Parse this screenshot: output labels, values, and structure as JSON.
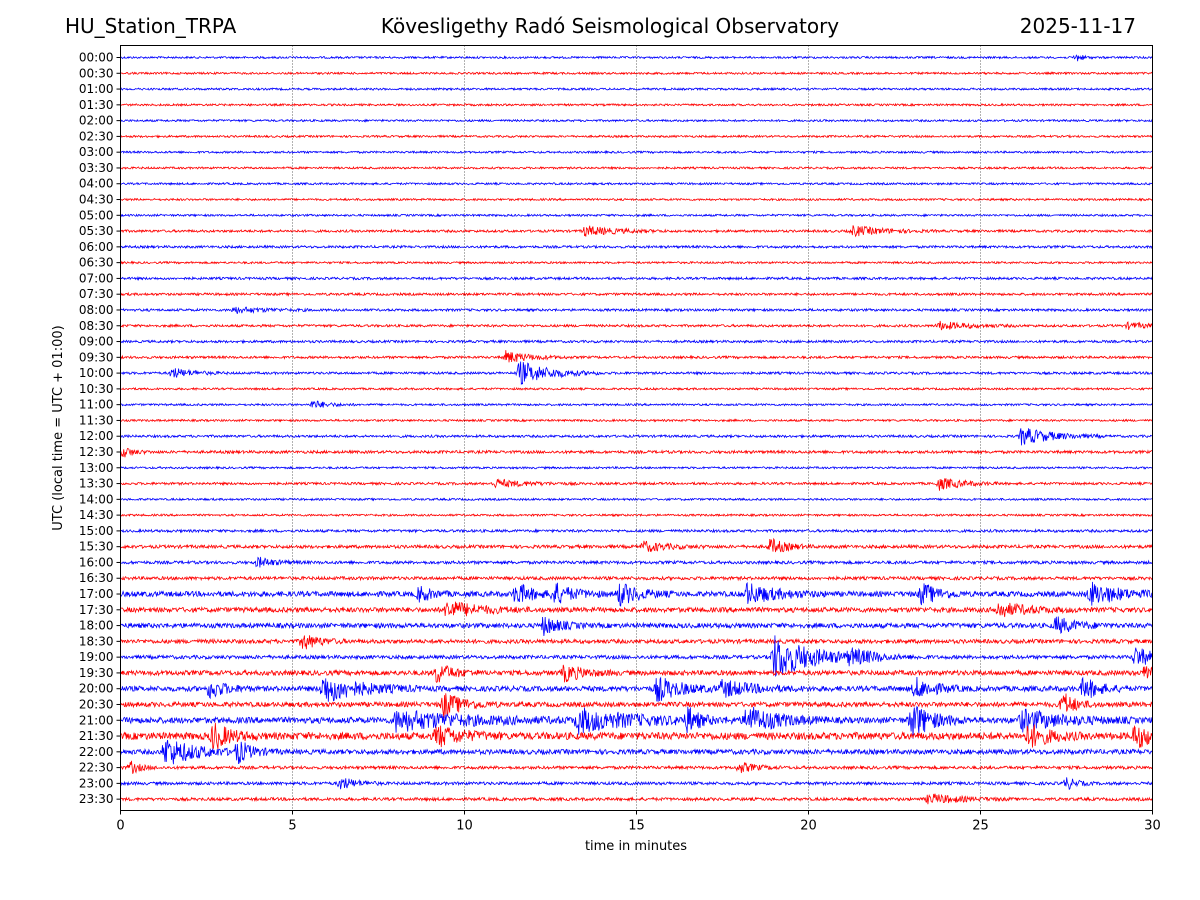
{
  "header": {
    "station": "HU_Station_TRPA",
    "observatory": "Kövesligethy Radó Seismological Observatory",
    "date": "2025-11-17"
  },
  "colors": {
    "trace_even": "#0000ff",
    "trace_odd": "#ff0000",
    "grid": "#000000"
  },
  "chart_data": {
    "type": "helicorder",
    "title": "Kövesligethy Radó Seismological Observatory",
    "xlabel": "time in minutes",
    "ylabel": "UTC (local time = UTC + 01:00)",
    "xlim": [
      0,
      30
    ],
    "xticks": [
      0,
      5,
      10,
      15,
      20,
      25,
      30
    ],
    "xtick_labels": [
      "0",
      "5",
      "10",
      "15",
      "20",
      "25",
      "30"
    ],
    "grid_vertical_dotted_at": [
      5,
      10,
      15,
      20,
      25
    ],
    "row_labels": [
      "00:00",
      "00:30",
      "01:00",
      "01:30",
      "02:00",
      "02:30",
      "03:00",
      "03:30",
      "04:00",
      "04:30",
      "05:00",
      "05:30",
      "06:00",
      "06:30",
      "07:00",
      "07:30",
      "08:00",
      "08:30",
      "09:00",
      "09:30",
      "10:00",
      "10:30",
      "11:00",
      "11:30",
      "12:00",
      "12:30",
      "13:00",
      "13:30",
      "14:00",
      "14:30",
      "15:00",
      "15:30",
      "16:00",
      "16:30",
      "17:00",
      "17:30",
      "18:00",
      "18:30",
      "19:00",
      "19:30",
      "20:00",
      "20:30",
      "21:00",
      "21:30",
      "22:00",
      "22:30",
      "23:00",
      "23:30"
    ],
    "row_noise": [
      1,
      1,
      1,
      1,
      1,
      1,
      1,
      1,
      1,
      1,
      1,
      1.2,
      1.2,
      1,
      1.2,
      1.2,
      1.2,
      1.2,
      1.2,
      1.2,
      1.2,
      1,
      1,
      1,
      1.2,
      1.4,
      1,
      1.2,
      1,
      1,
      1.3,
      1.6,
      1.5,
      1.6,
      2.6,
      2.4,
      2.4,
      2,
      1.8,
      2.4,
      2.6,
      2.4,
      3,
      3.6,
      2.4,
      1.5,
      1.5,
      1.5
    ],
    "events": [
      {
        "row": "00:00",
        "minute": 27.8,
        "amplitude": 4,
        "duration": 0.3
      },
      {
        "row": "05:30",
        "minute": 13.5,
        "amplitude": 5,
        "duration": 1.5
      },
      {
        "row": "05:30",
        "minute": 21.3,
        "amplitude": 5,
        "duration": 1.5
      },
      {
        "row": "08:00",
        "minute": 3.3,
        "amplitude": 3,
        "duration": 1.5
      },
      {
        "row": "08:30",
        "minute": 23.8,
        "amplitude": 4,
        "duration": 1.5
      },
      {
        "row": "08:30",
        "minute": 29.3,
        "amplitude": 3,
        "duration": 1.0
      },
      {
        "row": "09:30",
        "minute": 11.2,
        "amplitude": 6,
        "duration": 1.2
      },
      {
        "row": "10:00",
        "minute": 11.6,
        "amplitude": 12,
        "duration": 1.5
      },
      {
        "row": "10:00",
        "minute": 1.5,
        "amplitude": 5,
        "duration": 1.0
      },
      {
        "row": "11:00",
        "minute": 5.6,
        "amplitude": 4,
        "duration": 0.8
      },
      {
        "row": "12:00",
        "minute": 26.2,
        "amplitude": 9,
        "duration": 1.5
      },
      {
        "row": "12:30",
        "minute": 0.1,
        "amplitude": 5,
        "duration": 0.5
      },
      {
        "row": "13:30",
        "minute": 10.9,
        "amplitude": 4,
        "duration": 1.5
      },
      {
        "row": "13:30",
        "minute": 23.8,
        "amplitude": 6,
        "duration": 1.2
      },
      {
        "row": "15:30",
        "minute": 15.2,
        "amplitude": 5,
        "duration": 1.2
      },
      {
        "row": "15:30",
        "minute": 18.9,
        "amplitude": 8,
        "duration": 0.8
      },
      {
        "row": "16:00",
        "minute": 4.0,
        "amplitude": 5,
        "duration": 0.8
      },
      {
        "row": "17:00",
        "minute": 8.7,
        "amplitude": 8,
        "duration": 0.6
      },
      {
        "row": "17:00",
        "minute": 11.5,
        "amplitude": 11,
        "duration": 0.8
      },
      {
        "row": "17:00",
        "minute": 12.6,
        "amplitude": 10,
        "duration": 1.0
      },
      {
        "row": "17:00",
        "minute": 14.5,
        "amplitude": 11,
        "duration": 1.0
      },
      {
        "row": "17:00",
        "minute": 18.2,
        "amplitude": 10,
        "duration": 1.5
      },
      {
        "row": "17:00",
        "minute": 23.3,
        "amplitude": 11,
        "duration": 0.8
      },
      {
        "row": "17:00",
        "minute": 28.2,
        "amplitude": 11,
        "duration": 1.5
      },
      {
        "row": "17:30",
        "minute": 9.5,
        "amplitude": 9,
        "duration": 1.5
      },
      {
        "row": "17:30",
        "minute": 25.5,
        "amplitude": 7,
        "duration": 1.5
      },
      {
        "row": "18:00",
        "minute": 12.3,
        "amplitude": 9,
        "duration": 0.8
      },
      {
        "row": "18:00",
        "minute": 27.2,
        "amplitude": 8,
        "duration": 1.0
      },
      {
        "row": "18:30",
        "minute": 5.3,
        "amplitude": 8,
        "duration": 0.8
      },
      {
        "row": "19:00",
        "minute": 19.0,
        "amplitude": 22,
        "duration": 2.0
      },
      {
        "row": "19:00",
        "minute": 21.2,
        "amplitude": 6,
        "duration": 1.5
      },
      {
        "row": "19:00",
        "minute": 29.5,
        "amplitude": 10,
        "duration": 1.0
      },
      {
        "row": "19:30",
        "minute": 9.2,
        "amplitude": 10,
        "duration": 0.8
      },
      {
        "row": "19:30",
        "minute": 12.9,
        "amplitude": 8,
        "duration": 1.0
      },
      {
        "row": "19:30",
        "minute": 29.8,
        "amplitude": 9,
        "duration": 0.8
      },
      {
        "row": "20:00",
        "minute": 5.9,
        "amplitude": 14,
        "duration": 1.8
      },
      {
        "row": "20:00",
        "minute": 2.6,
        "amplitude": 9,
        "duration": 0.8
      },
      {
        "row": "20:00",
        "minute": 15.6,
        "amplitude": 12,
        "duration": 1.2
      },
      {
        "row": "20:00",
        "minute": 17.5,
        "amplitude": 8,
        "duration": 1.5
      },
      {
        "row": "20:00",
        "minute": 23.1,
        "amplitude": 10,
        "duration": 1.0
      },
      {
        "row": "20:00",
        "minute": 28.0,
        "amplitude": 11,
        "duration": 0.8
      },
      {
        "row": "20:30",
        "minute": 9.4,
        "amplitude": 12,
        "duration": 1.0
      },
      {
        "row": "20:30",
        "minute": 27.4,
        "amplitude": 12,
        "duration": 0.6
      },
      {
        "row": "21:00",
        "minute": 8.0,
        "amplitude": 10,
        "duration": 3.5
      },
      {
        "row": "21:00",
        "minute": 13.3,
        "amplitude": 11,
        "duration": 3.0
      },
      {
        "row": "21:00",
        "minute": 16.5,
        "amplitude": 12,
        "duration": 0.5
      },
      {
        "row": "21:00",
        "minute": 18.2,
        "amplitude": 14,
        "duration": 1.5
      },
      {
        "row": "21:00",
        "minute": 23.0,
        "amplitude": 18,
        "duration": 1.0
      },
      {
        "row": "21:00",
        "minute": 26.2,
        "amplitude": 10,
        "duration": 2.0
      },
      {
        "row": "21:30",
        "minute": 2.7,
        "amplitude": 13,
        "duration": 0.8
      },
      {
        "row": "21:30",
        "minute": 9.2,
        "amplitude": 10,
        "duration": 1.2
      },
      {
        "row": "21:30",
        "minute": 26.4,
        "amplitude": 11,
        "duration": 1.0
      },
      {
        "row": "21:30",
        "minute": 29.5,
        "amplitude": 11,
        "duration": 1.0
      },
      {
        "row": "22:00",
        "minute": 1.3,
        "amplitude": 14,
        "duration": 1.5
      },
      {
        "row": "22:00",
        "minute": 3.4,
        "amplitude": 10,
        "duration": 0.8
      },
      {
        "row": "22:30",
        "minute": 0.3,
        "amplitude": 6,
        "duration": 0.5
      },
      {
        "row": "22:30",
        "minute": 18.0,
        "amplitude": 5,
        "duration": 0.8
      },
      {
        "row": "23:00",
        "minute": 6.4,
        "amplitude": 6,
        "duration": 0.8
      },
      {
        "row": "23:00",
        "minute": 27.5,
        "amplitude": 6,
        "duration": 0.5
      },
      {
        "row": "23:30",
        "minute": 23.5,
        "amplitude": 5,
        "duration": 1.5
      }
    ]
  }
}
